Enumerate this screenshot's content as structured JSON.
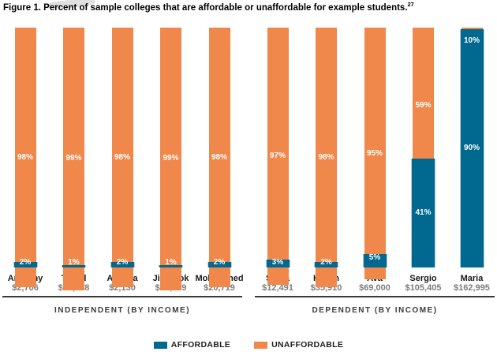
{
  "title": {
    "text": "Figure 1. Percent of sample colleges that are affordable or unaffordable for example students.",
    "footnote_ref": "27"
  },
  "colors": {
    "affordable": "#01688f",
    "unaffordable": "#f0874b",
    "affordable_edge": "#b5d2e2",
    "divider": "#3a3a3a",
    "name_text": "#1a1a1a",
    "income_text": "#7d7d7d"
  },
  "legend": [
    {
      "label": "AFFORDABLE",
      "color": "#01688f"
    },
    {
      "label": "UNAFFORDABLE",
      "color": "#f0874b"
    }
  ],
  "chart_data": {
    "type": "bar",
    "stacked": true,
    "unit": "percent",
    "ylim": [
      0,
      100
    ],
    "title": "Figure 1. Percent of sample colleges that are affordable or unaffordable for example students.",
    "series_names": [
      "AFFORDABLE",
      "UNAFFORDABLE"
    ],
    "groups": [
      {
        "label": "INDEPENDENT (BY INCOME)",
        "students": [
          {
            "name": "Anthony",
            "income": "$2,706",
            "affordable": 2,
            "unaffordable": 98,
            "affordable_label": "2%",
            "unaffordable_label": "98%"
          },
          {
            "name": "Traval",
            "income": "$30,388",
            "affordable": 1,
            "unaffordable": 99,
            "affordable_label": "1%",
            "unaffordable_label": "99%"
          },
          {
            "name": "Aneesa",
            "income": "$2,130",
            "affordable": 2,
            "unaffordable": 98,
            "affordable_label": "2%",
            "unaffordable_label": "98%"
          },
          {
            "name": "Jin Sook",
            "income": "$33,639",
            "affordable": 1,
            "unaffordable": 99,
            "affordable_label": "1%",
            "unaffordable_label": "99%"
          },
          {
            "name": "Mohammed",
            "income": "$20,719",
            "affordable": 2,
            "unaffordable": 98,
            "affordable_label": "2%",
            "unaffordable_label": "98%"
          }
        ]
      },
      {
        "label": "DEPENDENT (BY INCOME)",
        "students": [
          {
            "name": "Sonja",
            "income": "$12,491",
            "affordable": 3,
            "unaffordable": 97,
            "affordable_label": "3%",
            "unaffordable_label": "97%"
          },
          {
            "name": "Hakim",
            "income": "$35,910",
            "affordable": 2,
            "unaffordable": 98,
            "affordable_label": "2%",
            "unaffordable_label": "98%"
          },
          {
            "name": "Ava",
            "income": "$69,000",
            "affordable": 5,
            "unaffordable": 95,
            "affordable_label": "5%",
            "unaffordable_label": "95%"
          },
          {
            "name": "Sergio",
            "income": "$105,405",
            "affordable": 41,
            "unaffordable": 59,
            "affordable_label": "41%",
            "unaffordable_label": "59%"
          },
          {
            "name": "Maria",
            "income": "$162,995",
            "affordable": 90,
            "unaffordable": 10,
            "affordable_label": "90%",
            "unaffordable_label": "10%"
          }
        ]
      }
    ]
  }
}
